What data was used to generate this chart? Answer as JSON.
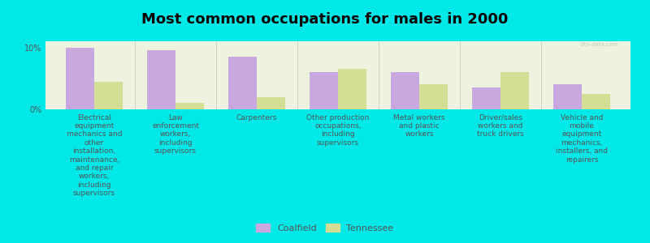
{
  "title": "Most common occupations for males in 2000",
  "categories": [
    "Electrical\nequipment\nmechanics and\nother\ninstallation,\nmaintenance,\nand repair\nworkers,\nincluding\nsupervisors",
    "Law\nenforcement\nworkers,\nincluding\nsupervisors",
    "Carpenters",
    "Other production\noccupations,\nincluding\nsupervisors",
    "Metal workers\nand plastic\nworkers",
    "Driver/sales\nworkers and\ntruck drivers",
    "Vehicle and\nmobile\nequipment\nmechanics,\ninstallers, and\nrepairers"
  ],
  "coalfield_values": [
    10.0,
    9.5,
    8.5,
    6.0,
    6.0,
    3.5,
    4.0
  ],
  "tennessee_values": [
    4.5,
    1.0,
    2.0,
    6.5,
    4.0,
    6.0,
    2.5
  ],
  "coalfield_color": "#c9a8e0",
  "tennessee_color": "#d4dd94",
  "background_color": "#00e8e8",
  "plot_bg_color": "#eef3e0",
  "ylim": [
    0,
    11
  ],
  "ytick_labels": [
    "0%",
    "10%"
  ],
  "ytick_vals": [
    0,
    10
  ],
  "legend_labels": [
    "Coalfield",
    "Tennessee"
  ],
  "bar_width": 0.35,
  "title_fontsize": 13,
  "label_fontsize": 6.5,
  "watermark": "city-data.com"
}
